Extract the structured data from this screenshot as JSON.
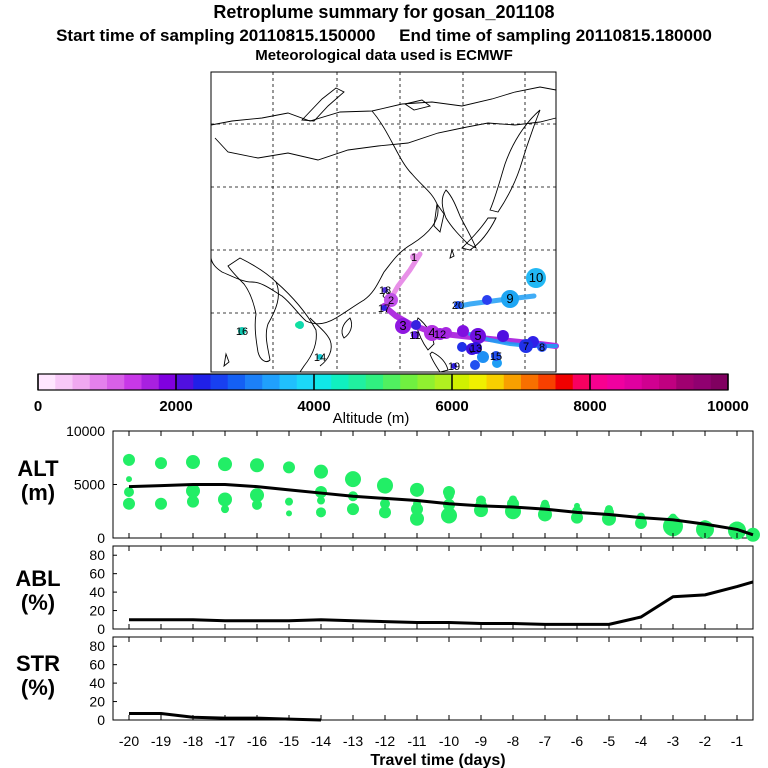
{
  "header": {
    "title": "Retroplume summary for gosan_201108",
    "sampling_line": "Start time of sampling 20110815.150000     End time of sampling 20110815.180000",
    "met_line": "Meteorological data used is ECMWF"
  },
  "colorbar": {
    "title": "Altitude (m)",
    "ticks": [
      "0",
      "2000",
      "4000",
      "6000",
      "8000",
      "10000"
    ],
    "colors": [
      "#ffe6ff",
      "#f8c8f8",
      "#f0a8f0",
      "#e480ec",
      "#d860e8",
      "#c838e8",
      "#a820e0",
      "#8000e0",
      "#5010e0",
      "#2020e8",
      "#1840f0",
      "#1460f4",
      "#1c80f8",
      "#20a0fc",
      "#20c0fc",
      "#1cd8f8",
      "#10e8e8",
      "#10f0c0",
      "#20f0a0",
      "#30f080",
      "#50f060",
      "#70f040",
      "#90f030",
      "#b0f020",
      "#d0f000",
      "#f0f000",
      "#f8d000",
      "#f8a000",
      "#f87000",
      "#f84000",
      "#f00000",
      "#f80060",
      "#f80090",
      "#f000a0",
      "#e000a0",
      "#d00090",
      "#c00080",
      "#a00070",
      "#900070",
      "#800060"
    ]
  },
  "map": {
    "labels": [
      "1",
      "2",
      "3",
      "4",
      "5",
      "6",
      "7",
      "8",
      "9",
      "10",
      "11",
      "12",
      "13",
      "14",
      "15",
      "16",
      "17",
      "18",
      "19",
      "20"
    ]
  },
  "chart_data": [
    {
      "type": "line",
      "panel": "ALT",
      "ylabel": "ALT (m)",
      "ylim": [
        0,
        10000
      ],
      "yticks": [
        "0",
        "5000",
        "10000"
      ],
      "x": [
        -0.5,
        -1,
        -2,
        -3,
        -4,
        -5,
        -6,
        -7,
        -8,
        -9,
        -10,
        -11,
        -12,
        -13,
        -14,
        -15,
        -16,
        -17,
        -18,
        -19,
        -20
      ],
      "series": [
        {
          "name": "mean altitude",
          "values": [
            300,
            800,
            1300,
            1700,
            1900,
            2200,
            2400,
            2700,
            2900,
            3000,
            3200,
            3500,
            3700,
            3900,
            4200,
            4500,
            4800,
            5000,
            5000,
            4900,
            4800
          ]
        }
      ],
      "clusters": [
        {
          "x": -0.5,
          "alts": [
            300
          ],
          "sizes": [
            7
          ]
        },
        {
          "x": -1,
          "alts": [
            700,
            900
          ],
          "sizes": [
            9,
            4
          ]
        },
        {
          "x": -2,
          "alts": [
            800,
            1200
          ],
          "sizes": [
            9,
            5
          ]
        },
        {
          "x": -3,
          "alts": [
            1100,
            1600,
            1900
          ],
          "sizes": [
            10,
            6,
            4
          ]
        },
        {
          "x": -4,
          "alts": [
            1400,
            2000
          ],
          "sizes": [
            6,
            4
          ]
        },
        {
          "x": -5,
          "alts": [
            1800,
            2400,
            2700
          ],
          "sizes": [
            7,
            5,
            4
          ]
        },
        {
          "x": -6,
          "alts": [
            1900,
            2500,
            3000
          ],
          "sizes": [
            6,
            5,
            3
          ]
        },
        {
          "x": -7,
          "alts": [
            2200,
            2900,
            3200
          ],
          "sizes": [
            7,
            5,
            4
          ]
        },
        {
          "x": -8,
          "alts": [
            2500,
            3200,
            3600
          ],
          "sizes": [
            8,
            6,
            4
          ]
        },
        {
          "x": -9,
          "alts": [
            2600,
            3000,
            3500
          ],
          "sizes": [
            7,
            6,
            5
          ]
        },
        {
          "x": -10,
          "alts": [
            2100,
            3100,
            4000,
            4300
          ],
          "sizes": [
            8,
            6,
            5,
            6
          ]
        },
        {
          "x": -11,
          "alts": [
            1800,
            2700,
            3200,
            4500
          ],
          "sizes": [
            7,
            6,
            4,
            7
          ]
        },
        {
          "x": -12,
          "alts": [
            2400,
            3200,
            4900
          ],
          "sizes": [
            6,
            5,
            8
          ]
        },
        {
          "x": -13,
          "alts": [
            2700,
            3900,
            5500
          ],
          "sizes": [
            6,
            5,
            8
          ]
        },
        {
          "x": -14,
          "alts": [
            2400,
            3500,
            4300,
            6200
          ],
          "sizes": [
            5,
            4,
            6,
            7
          ]
        },
        {
          "x": -15,
          "alts": [
            2300,
            3400,
            6600
          ],
          "sizes": [
            3,
            4,
            6
          ]
        },
        {
          "x": -16,
          "alts": [
            3100,
            4000,
            6800
          ],
          "sizes": [
            5,
            7,
            7
          ]
        },
        {
          "x": -17,
          "alts": [
            2700,
            3600,
            6900
          ],
          "sizes": [
            4,
            7,
            7
          ]
        },
        {
          "x": -18,
          "alts": [
            3400,
            4400,
            7100
          ],
          "sizes": [
            6,
            7,
            7
          ]
        },
        {
          "x": -19,
          "alts": [
            3200,
            7000
          ],
          "sizes": [
            6,
            6
          ]
        },
        {
          "x": -20,
          "alts": [
            3200,
            4300,
            5500,
            7300
          ],
          "sizes": [
            6,
            5,
            3,
            6
          ]
        }
      ]
    },
    {
      "type": "line",
      "panel": "ABL",
      "ylabel": "ABL (%)",
      "ylim": [
        0,
        90
      ],
      "yticks": [
        "0",
        "20",
        "40",
        "60",
        "80"
      ],
      "x": [
        -0.5,
        -1,
        -2,
        -3,
        -4,
        -5,
        -6,
        -7,
        -8,
        -9,
        -10,
        -11,
        -12,
        -13,
        -14,
        -15,
        -16,
        -17,
        -18,
        -19,
        -20
      ],
      "series": [
        {
          "name": "ABL",
          "values": [
            51,
            46,
            37,
            35,
            13,
            5,
            5,
            5,
            6,
            6,
            7,
            7,
            8,
            9,
            10,
            9,
            9,
            9,
            10,
            10,
            10
          ]
        }
      ]
    },
    {
      "type": "line",
      "panel": "STR",
      "ylabel": "STR (%)",
      "ylim": [
        0,
        90
      ],
      "yticks": [
        "0",
        "20",
        "40",
        "60",
        "80"
      ],
      "x": [
        -14,
        -15,
        -16,
        -17,
        -18,
        -19,
        -20
      ],
      "series": [
        {
          "name": "STR",
          "values": [
            0,
            1,
            2,
            2,
            3,
            7,
            7
          ]
        }
      ]
    }
  ],
  "xaxis": {
    "title": "Travel time (days)",
    "ticks": [
      "-20",
      "-19",
      "-18",
      "-17",
      "-16",
      "-15",
      "-14",
      "-13",
      "-12",
      "-11",
      "-10",
      "-9",
      "-8",
      "-7",
      "-6",
      "-5",
      "-4",
      "-3",
      "-2",
      "-1"
    ],
    "values": [
      -20,
      -19,
      -18,
      -17,
      -16,
      -15,
      -14,
      -13,
      -12,
      -11,
      -10,
      -9,
      -8,
      -7,
      -6,
      -5,
      -4,
      -3,
      -2,
      -1
    ]
  },
  "panels": {
    "alt": {
      "label": "ALT",
      "unit": "(m)"
    },
    "abl": {
      "label": "ABL",
      "unit": "(%)"
    },
    "str": {
      "label": "STR",
      "unit": "(%)"
    }
  },
  "colors": {
    "green": "#22ee66",
    "line": "#000000"
  }
}
